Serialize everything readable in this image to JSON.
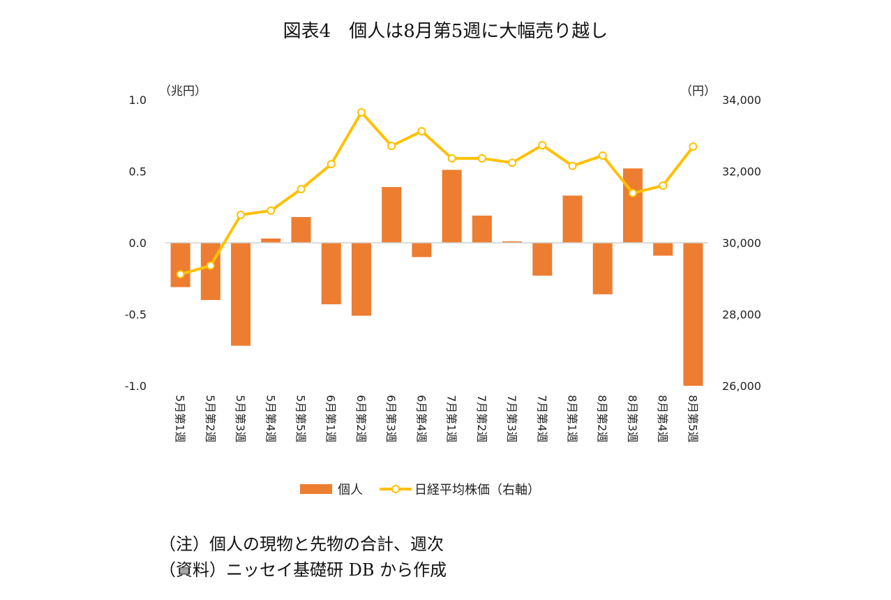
{
  "title": "図表4　個人は8月第5週に大幅売り越し",
  "notes": [
    "（注）個人の現物と先物の合計、週次",
    "（資料）ニッセイ基礎研 DB から作成"
  ],
  "chart_data": {
    "type": "bar+line",
    "title": "図表4　個人は8月第5週に大幅売り越し",
    "left_axis": {
      "unit_label": "（兆円）",
      "ylim": [
        -1.0,
        1.0
      ],
      "ticks": [
        "1.0",
        "0.5",
        "0.0",
        "-0.5",
        "-1.0"
      ],
      "tick_values": [
        1.0,
        0.5,
        0.0,
        -0.5,
        -1.0
      ]
    },
    "right_axis": {
      "unit_label": "（円）",
      "ylim": [
        26000,
        34000
      ],
      "ticks": [
        "34,000",
        "32,000",
        "30,000",
        "28,000",
        "26,000"
      ],
      "tick_values": [
        34000,
        32000,
        30000,
        28000,
        26000
      ]
    },
    "categories": [
      "5月第1週",
      "5月第2週",
      "5月第3週",
      "5月第4週",
      "5月第5週",
      "6月第1週",
      "6月第2週",
      "6月第3週",
      "6月第4週",
      "7月第1週",
      "7月第2週",
      "7月第3週",
      "7月第4週",
      "8月第1週",
      "8月第2週",
      "8月第3週",
      "8月第4週",
      "8月第5週"
    ],
    "series": [
      {
        "name": "個人",
        "type": "bar",
        "axis": "left",
        "color": "#ED7D31",
        "values": [
          -0.31,
          -0.4,
          -0.72,
          0.03,
          0.18,
          -0.43,
          -0.51,
          0.39,
          -0.1,
          0.51,
          0.19,
          0.01,
          -0.23,
          0.33,
          -0.36,
          0.52,
          -0.09,
          -1.0
        ]
      },
      {
        "name": "日経平均株価（右軸）",
        "type": "line",
        "axis": "right",
        "color": "#FFC000",
        "values": [
          29120,
          29360,
          30780,
          30900,
          31500,
          32200,
          33650,
          32710,
          33120,
          32360,
          32360,
          32240,
          32730,
          32150,
          32440,
          31390,
          31600,
          32690
        ]
      }
    ],
    "grid": false,
    "legend": "bottom"
  }
}
